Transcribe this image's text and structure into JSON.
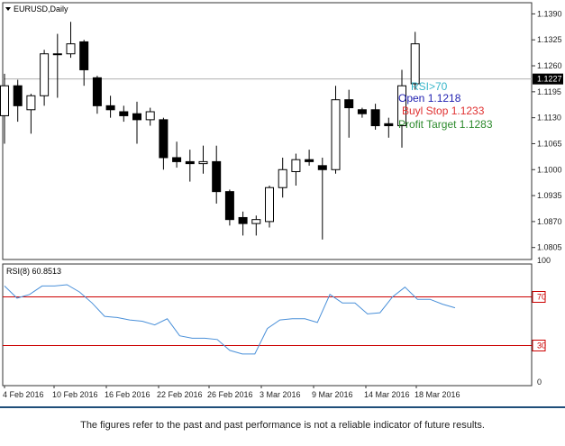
{
  "chart_data": [
    {
      "type": "candlestick",
      "title": "EURUSD,Daily",
      "ylim": [
        1.0775,
        1.1418
      ],
      "y_ticks": [
        "1.1390",
        "1.1325",
        "1.1260",
        "1.1195",
        "1.1130",
        "1.1065",
        "1.1000",
        "1.0935",
        "1.0870",
        "1.0805"
      ],
      "current_price": "1.1227",
      "x_tick_labels": [
        "4 Feb 2016",
        "10 Feb 2016",
        "16 Feb 2016",
        "22 Feb 2016",
        "26 Feb 2016",
        "3 Mar 2016",
        "9 Mar 2016",
        "14 Mar 2016",
        "18 Mar 2016"
      ],
      "candles": [
        {
          "open": 1.1135,
          "high": 1.124,
          "low": 1.1065,
          "close": 1.121
        },
        {
          "open": 1.121,
          "high": 1.1225,
          "low": 1.112,
          "close": 1.116
        },
        {
          "open": 1.115,
          "high": 1.119,
          "low": 1.109,
          "close": 1.1185
        },
        {
          "open": 1.1185,
          "high": 1.13,
          "low": 1.116,
          "close": 1.129
        },
        {
          "open": 1.129,
          "high": 1.134,
          "low": 1.118,
          "close": 1.129
        },
        {
          "open": 1.129,
          "high": 1.137,
          "low": 1.128,
          "close": 1.1315
        },
        {
          "open": 1.132,
          "high": 1.1325,
          "low": 1.121,
          "close": 1.125
        },
        {
          "open": 1.123,
          "high": 1.1235,
          "low": 1.114,
          "close": 1.116
        },
        {
          "open": 1.116,
          "high": 1.1185,
          "low": 1.113,
          "close": 1.115
        },
        {
          "open": 1.1145,
          "high": 1.116,
          "low": 1.112,
          "close": 1.1135
        },
        {
          "open": 1.114,
          "high": 1.117,
          "low": 1.1065,
          "close": 1.1125
        },
        {
          "open": 1.1125,
          "high": 1.1155,
          "low": 1.111,
          "close": 1.1145
        },
        {
          "open": 1.1125,
          "high": 1.113,
          "low": 1.1,
          "close": 1.103
        },
        {
          "open": 1.103,
          "high": 1.107,
          "low": 1.1005,
          "close": 1.102
        },
        {
          "open": 1.102,
          "high": 1.105,
          "low": 1.097,
          "close": 1.1015
        },
        {
          "open": 1.1015,
          "high": 1.106,
          "low": 1.099,
          "close": 1.102
        },
        {
          "open": 1.102,
          "high": 1.106,
          "low": 1.0915,
          "close": 1.0945
        },
        {
          "open": 1.0945,
          "high": 1.095,
          "low": 1.086,
          "close": 1.0875
        },
        {
          "open": 1.088,
          "high": 1.0895,
          "low": 1.0835,
          "close": 1.0865
        },
        {
          "open": 1.0865,
          "high": 1.0885,
          "low": 1.0835,
          "close": 1.0875
        },
        {
          "open": 1.087,
          "high": 1.096,
          "low": 1.0855,
          "close": 1.0955
        },
        {
          "open": 1.0955,
          "high": 1.103,
          "low": 1.093,
          "close": 1.1
        },
        {
          "open": 1.0995,
          "high": 1.104,
          "low": 1.096,
          "close": 1.1025
        },
        {
          "open": 1.1025,
          "high": 1.105,
          "low": 1.101,
          "close": 1.102
        },
        {
          "open": 1.101,
          "high": 1.103,
          "low": 1.0825,
          "close": 1.1
        },
        {
          "open": 1.1,
          "high": 1.121,
          "low": 1.099,
          "close": 1.1175
        },
        {
          "open": 1.1175,
          "high": 1.12,
          "low": 1.108,
          "close": 1.1155
        },
        {
          "open": 1.115,
          "high": 1.1155,
          "low": 1.113,
          "close": 1.114
        },
        {
          "open": 1.115,
          "high": 1.1165,
          "low": 1.11,
          "close": 1.111
        },
        {
          "open": 1.1115,
          "high": 1.113,
          "low": 1.108,
          "close": 1.111
        },
        {
          "open": 1.111,
          "high": 1.125,
          "low": 1.1055,
          "close": 1.121
        },
        {
          "open": 1.1215,
          "high": 1.1345,
          "low": 1.12,
          "close": 1.1315
        }
      ],
      "annotations": [
        {
          "text": "RSI>70",
          "color": "#38b6c9"
        },
        {
          "text": "Open 1.1218",
          "color": "#1f1fb0"
        },
        {
          "text": "Buyl Stop 1.1233",
          "color": "#e03030"
        },
        {
          "text": "Profit Target 1.1283",
          "color": "#2e8b2e"
        }
      ]
    },
    {
      "type": "line",
      "title": "RSI(8) 60.8513",
      "ylim": [
        0,
        100
      ],
      "y_ticks": [
        "100",
        "70",
        "30",
        "0"
      ],
      "levels": [
        70,
        30
      ],
      "level_color": "#cc0000",
      "line_color": "#4a90d9",
      "values": [
        79,
        69,
        72,
        79,
        79,
        80,
        74,
        65,
        54,
        53,
        51,
        50,
        47,
        52,
        38,
        36,
        36,
        35,
        26,
        23,
        23,
        44,
        51,
        52,
        52,
        49,
        72,
        65,
        65,
        56,
        57,
        70,
        78,
        68,
        68,
        64,
        61
      ]
    }
  ],
  "footer": {
    "disclaimer": "The figures refer to the past and past performance is not a reliable indicator of future results."
  },
  "colors": {
    "grid_border": "#333333",
    "price_line": "#b0b0b0",
    "bull_body": "#ffffff",
    "bear_body": "#000000"
  }
}
